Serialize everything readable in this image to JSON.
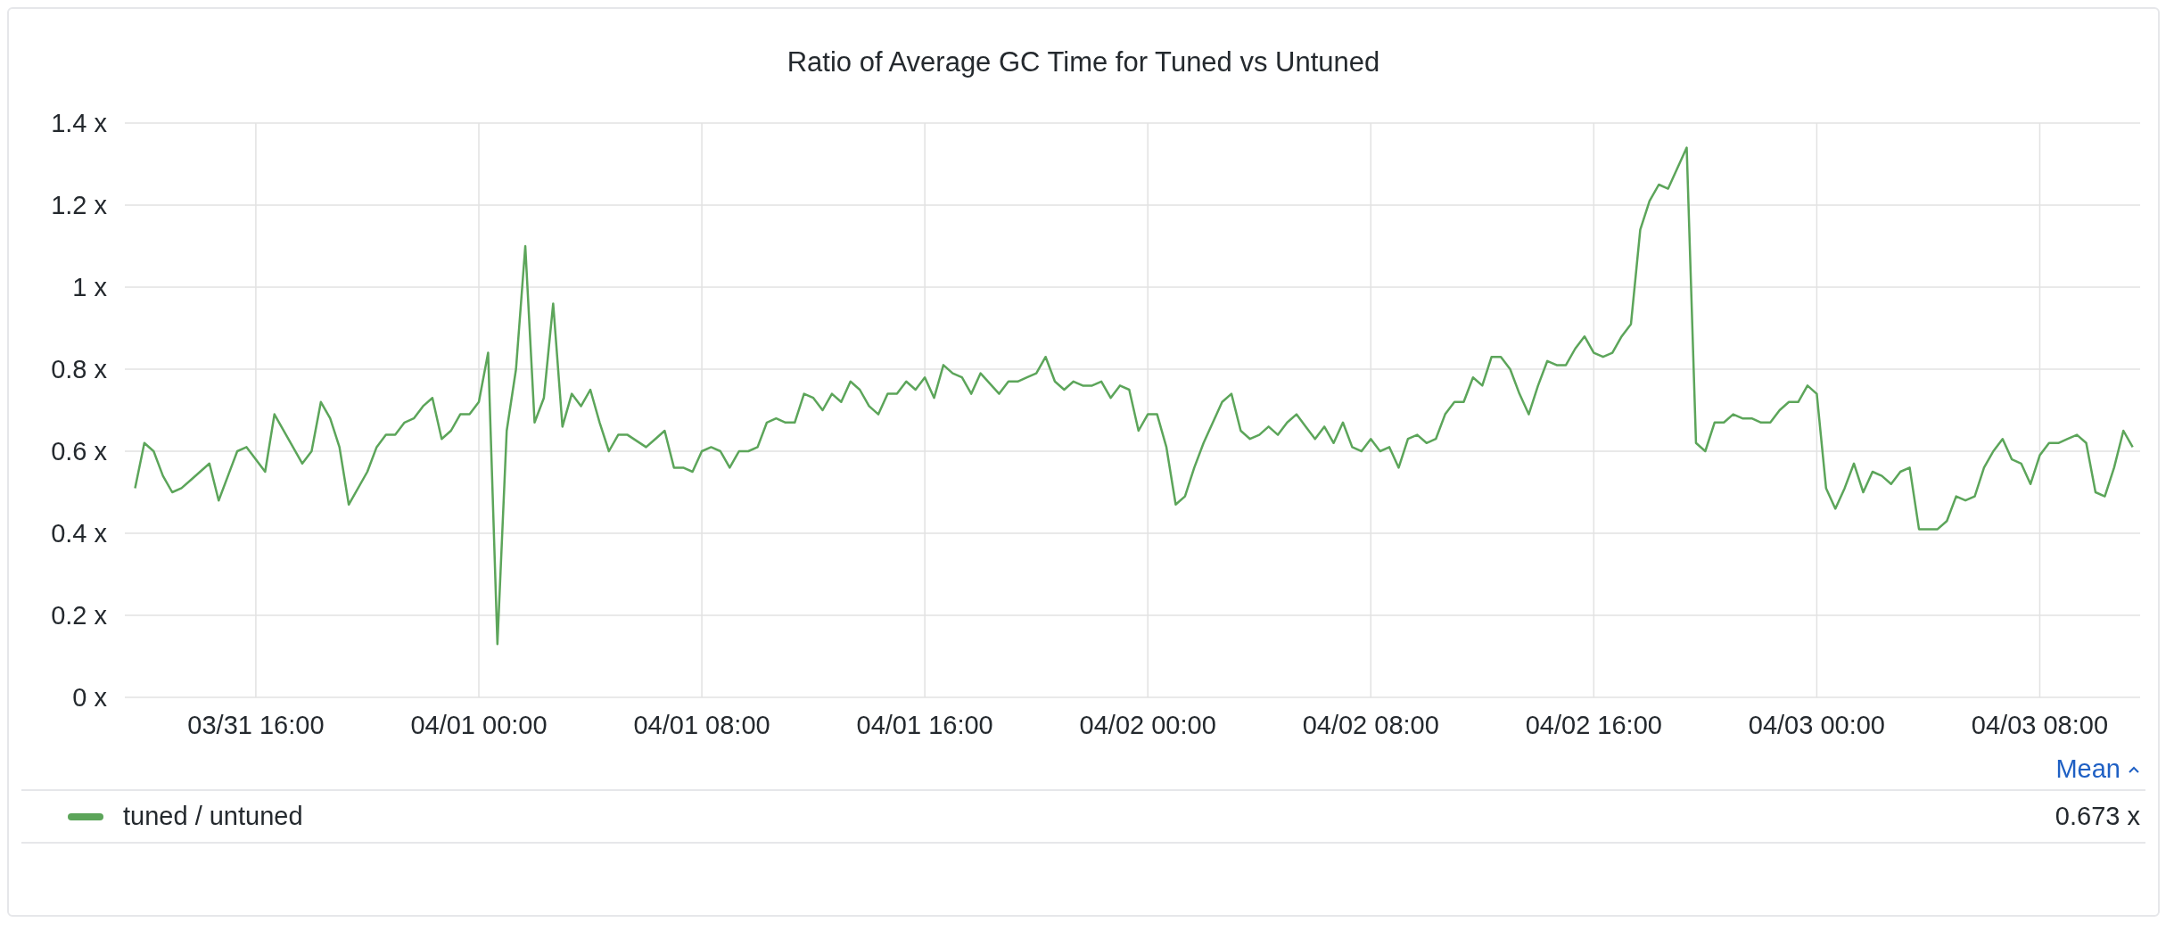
{
  "chart_data": {
    "type": "line",
    "title": "Ratio of Average GC Time for Tuned vs Untuned",
    "xlim": [
      "--03-31T11:18",
      "--04-03T11:36"
    ],
    "xticks": [
      {
        "value": "--03-31T16:00",
        "label": "03/31 16:00"
      },
      {
        "value": "--04-01T00:00",
        "label": "04/01 00:00"
      },
      {
        "value": "--04-01T08:00",
        "label": "04/01 08:00"
      },
      {
        "value": "--04-01T16:00",
        "label": "04/01 16:00"
      },
      {
        "value": "--04-02T00:00",
        "label": "04/02 00:00"
      },
      {
        "value": "--04-02T08:00",
        "label": "04/02 08:00"
      },
      {
        "value": "--04-02T16:00",
        "label": "04/02 16:00"
      },
      {
        "value": "--04-03T00:00",
        "label": "04/03 00:00"
      },
      {
        "value": "--04-03T08:00",
        "label": "04/03 08:00"
      }
    ],
    "ylim": [
      0,
      1.4
    ],
    "yticks": [
      {
        "value": 0,
        "label": "0 x"
      },
      {
        "value": 0.2,
        "label": "0.2 x"
      },
      {
        "value": 0.4,
        "label": "0.4 x"
      },
      {
        "value": 0.6,
        "label": "0.6 x"
      },
      {
        "value": 0.8,
        "label": "0.8 x"
      },
      {
        "value": 1,
        "label": "1 x"
      },
      {
        "value": 1.2,
        "label": "1.2 x"
      },
      {
        "value": 1.4,
        "label": "1.4 x"
      }
    ],
    "grid": true,
    "legend": "bottom",
    "marker": "none",
    "line_style": "solid",
    "annotations": [
      "Mean",
      "0.673 x"
    ],
    "series": [
      {
        "name": "tuned / untuned",
        "color": "#5ca55a",
        "x": [
          "--03-31T11:40",
          "--03-31T12:00",
          "--03-31T12:20",
          "--03-31T12:40",
          "--03-31T13:00",
          "--03-31T13:20",
          "--03-31T13:40",
          "--03-31T14:00",
          "--03-31T14:20",
          "--03-31T14:40",
          "--03-31T15:00",
          "--03-31T15:20",
          "--03-31T15:40",
          "--03-31T16:20",
          "--03-31T16:40",
          "--03-31T17:40",
          "--03-31T18:00",
          "--03-31T18:20",
          "--03-31T18:40",
          "--03-31T19:00",
          "--03-31T19:20",
          "--03-31T20:00",
          "--03-31T20:20",
          "--03-31T20:40",
          "--03-31T21:00",
          "--03-31T21:20",
          "--03-31T21:40",
          "--03-31T22:00",
          "--03-31T22:20",
          "--03-31T22:40",
          "--03-31T23:00",
          "--03-31T23:20",
          "--03-31T23:40",
          "--04-01T00:00",
          "--04-01T00:20",
          "--04-01T00:40",
          "--04-01T01:00",
          "--04-01T01:20",
          "--04-01T01:40",
          "--04-01T02:00",
          "--04-01T02:20",
          "--04-01T02:40",
          "--04-01T03:00",
          "--04-01T03:20",
          "--04-01T03:40",
          "--04-01T04:00",
          "--04-01T04:20",
          "--04-01T04:40",
          "--04-01T05:00",
          "--04-01T05:20",
          "--04-01T06:00",
          "--04-01T06:20",
          "--04-01T06:40",
          "--04-01T07:00",
          "--04-01T07:20",
          "--04-01T07:40",
          "--04-01T08:00",
          "--04-01T08:20",
          "--04-01T08:40",
          "--04-01T09:00",
          "--04-01T09:20",
          "--04-01T09:40",
          "--04-01T10:00",
          "--04-01T10:20",
          "--04-01T10:40",
          "--04-01T11:00",
          "--04-01T11:20",
          "--04-01T11:40",
          "--04-01T12:00",
          "--04-01T12:20",
          "--04-01T12:40",
          "--04-01T13:00",
          "--04-01T13:20",
          "--04-01T13:40",
          "--04-01T14:00",
          "--04-01T14:20",
          "--04-01T14:40",
          "--04-01T15:00",
          "--04-01T15:20",
          "--04-01T15:40",
          "--04-01T16:00",
          "--04-01T16:20",
          "--04-01T16:40",
          "--04-01T17:00",
          "--04-01T17:20",
          "--04-01T17:40",
          "--04-01T18:00",
          "--04-01T18:40",
          "--04-01T19:00",
          "--04-01T19:20",
          "--04-01T19:40",
          "--04-01T20:00",
          "--04-01T20:20",
          "--04-01T20:40",
          "--04-01T21:00",
          "--04-01T21:20",
          "--04-01T21:40",
          "--04-01T22:00",
          "--04-01T22:20",
          "--04-01T22:40",
          "--04-01T23:00",
          "--04-01T23:20",
          "--04-01T23:40",
          "--04-02T00:00",
          "--04-02T00:20",
          "--04-02T00:40",
          "--04-02T01:00",
          "--04-02T01:20",
          "--04-02T01:40",
          "--04-02T02:00",
          "--04-02T02:20",
          "--04-02T02:40",
          "--04-02T03:00",
          "--04-02T03:20",
          "--04-02T03:40",
          "--04-02T04:00",
          "--04-02T04:20",
          "--04-02T04:40",
          "--04-02T05:00",
          "--04-02T05:20",
          "--04-02T05:40",
          "--04-02T06:00",
          "--04-02T06:20",
          "--04-02T06:40",
          "--04-02T07:00",
          "--04-02T07:20",
          "--04-02T07:40",
          "--04-02T08:00",
          "--04-02T08:20",
          "--04-02T08:40",
          "--04-02T09:00",
          "--04-02T09:20",
          "--04-02T09:40",
          "--04-02T10:00",
          "--04-02T10:20",
          "--04-02T10:40",
          "--04-02T11:00",
          "--04-02T11:20",
          "--04-02T11:40",
          "--04-02T12:00",
          "--04-02T12:20",
          "--04-02T12:40",
          "--04-02T13:00",
          "--04-02T13:20",
          "--04-02T13:40",
          "--04-02T14:00",
          "--04-02T14:20",
          "--04-02T14:40",
          "--04-02T15:00",
          "--04-02T15:20",
          "--04-02T15:40",
          "--04-02T16:00",
          "--04-02T16:20",
          "--04-02T16:40",
          "--04-02T17:00",
          "--04-02T17:20",
          "--04-02T17:40",
          "--04-02T18:00",
          "--04-02T18:20",
          "--04-02T18:40",
          "--04-02T19:20",
          "--04-02T19:40",
          "--04-02T20:00",
          "--04-02T20:20",
          "--04-02T20:40",
          "--04-02T21:00",
          "--04-02T21:20",
          "--04-02T21:40",
          "--04-02T22:00",
          "--04-02T22:20",
          "--04-02T22:40",
          "--04-02T23:00",
          "--04-02T23:20",
          "--04-02T23:40",
          "--04-03T00:00",
          "--04-03T00:20",
          "--04-03T00:40",
          "--04-03T01:00",
          "--04-03T01:20",
          "--04-03T01:40",
          "--04-03T02:00",
          "--04-03T02:20",
          "--04-03T02:40",
          "--04-03T03:00",
          "--04-03T03:20",
          "--04-03T03:40",
          "--04-03T04:00",
          "--04-03T04:20",
          "--04-03T04:40",
          "--04-03T05:00",
          "--04-03T05:20",
          "--04-03T05:40",
          "--04-03T06:00",
          "--04-03T06:20",
          "--04-03T06:40",
          "--04-03T07:00",
          "--04-03T07:20",
          "--04-03T07:40",
          "--04-03T08:00",
          "--04-03T08:20",
          "--04-03T08:40",
          "--04-03T09:00",
          "--04-03T09:20",
          "--04-03T09:40",
          "--04-03T10:00",
          "--04-03T10:20",
          "--04-03T10:40",
          "--04-03T11:00",
          "--04-03T11:20"
        ],
        "values": [
          0.51,
          0.62,
          0.6,
          0.54,
          0.5,
          0.51,
          0.53,
          0.55,
          0.57,
          0.48,
          0.54,
          0.6,
          0.61,
          0.55,
          0.69,
          0.57,
          0.6,
          0.72,
          0.68,
          0.61,
          0.47,
          0.55,
          0.61,
          0.64,
          0.64,
          0.67,
          0.68,
          0.71,
          0.73,
          0.63,
          0.65,
          0.69,
          0.69,
          0.72,
          0.84,
          0.13,
          0.65,
          0.8,
          1.1,
          0.67,
          0.73,
          0.96,
          0.66,
          0.74,
          0.71,
          0.75,
          0.67,
          0.6,
          0.64,
          0.64,
          0.61,
          0.63,
          0.65,
          0.56,
          0.56,
          0.55,
          0.6,
          0.61,
          0.6,
          0.56,
          0.6,
          0.6,
          0.61,
          0.67,
          0.68,
          0.67,
          0.67,
          0.74,
          0.73,
          0.7,
          0.74,
          0.72,
          0.77,
          0.75,
          0.71,
          0.69,
          0.74,
          0.74,
          0.77,
          0.75,
          0.78,
          0.73,
          0.81,
          0.79,
          0.78,
          0.74,
          0.79,
          0.74,
          0.77,
          0.77,
          0.78,
          0.79,
          0.83,
          0.77,
          0.75,
          0.77,
          0.76,
          0.76,
          0.77,
          0.73,
          0.76,
          0.75,
          0.65,
          0.69,
          0.69,
          0.61,
          0.47,
          0.49,
          0.56,
          0.62,
          0.67,
          0.72,
          0.74,
          0.65,
          0.63,
          0.64,
          0.66,
          0.64,
          0.67,
          0.69,
          0.66,
          0.63,
          0.66,
          0.62,
          0.67,
          0.61,
          0.6,
          0.63,
          0.6,
          0.61,
          0.56,
          0.63,
          0.64,
          0.62,
          0.63,
          0.69,
          0.72,
          0.72,
          0.78,
          0.76,
          0.83,
          0.83,
          0.8,
          0.74,
          0.69,
          0.76,
          0.82,
          0.81,
          0.81,
          0.85,
          0.88,
          0.84,
          0.83,
          0.84,
          0.88,
          0.91,
          1.14,
          1.21,
          1.25,
          1.24,
          1.34,
          0.62,
          0.6,
          0.67,
          0.67,
          0.69,
          0.68,
          0.68,
          0.67,
          0.67,
          0.7,
          0.72,
          0.72,
          0.76,
          0.74,
          0.51,
          0.46,
          0.51,
          0.57,
          0.5,
          0.55,
          0.54,
          0.52,
          0.55,
          0.56,
          0.41,
          0.41,
          0.41,
          0.43,
          0.49,
          0.48,
          0.49,
          0.56,
          0.6,
          0.63,
          0.58,
          0.57,
          0.52,
          0.59,
          0.62,
          0.62,
          0.63,
          0.64,
          0.62,
          0.5,
          0.49,
          0.56,
          0.65,
          0.61
        ]
      }
    ]
  }
}
